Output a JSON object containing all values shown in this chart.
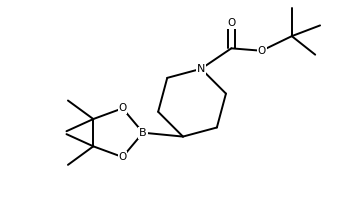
{
  "background_color": "#ffffff",
  "line_color": "#000000",
  "line_width": 1.4,
  "font_size": 7.5,
  "figsize": [
    3.5,
    2.2
  ],
  "dpi": 100,
  "xlim": [
    0,
    7
  ],
  "ylim": [
    0,
    4.4
  ]
}
